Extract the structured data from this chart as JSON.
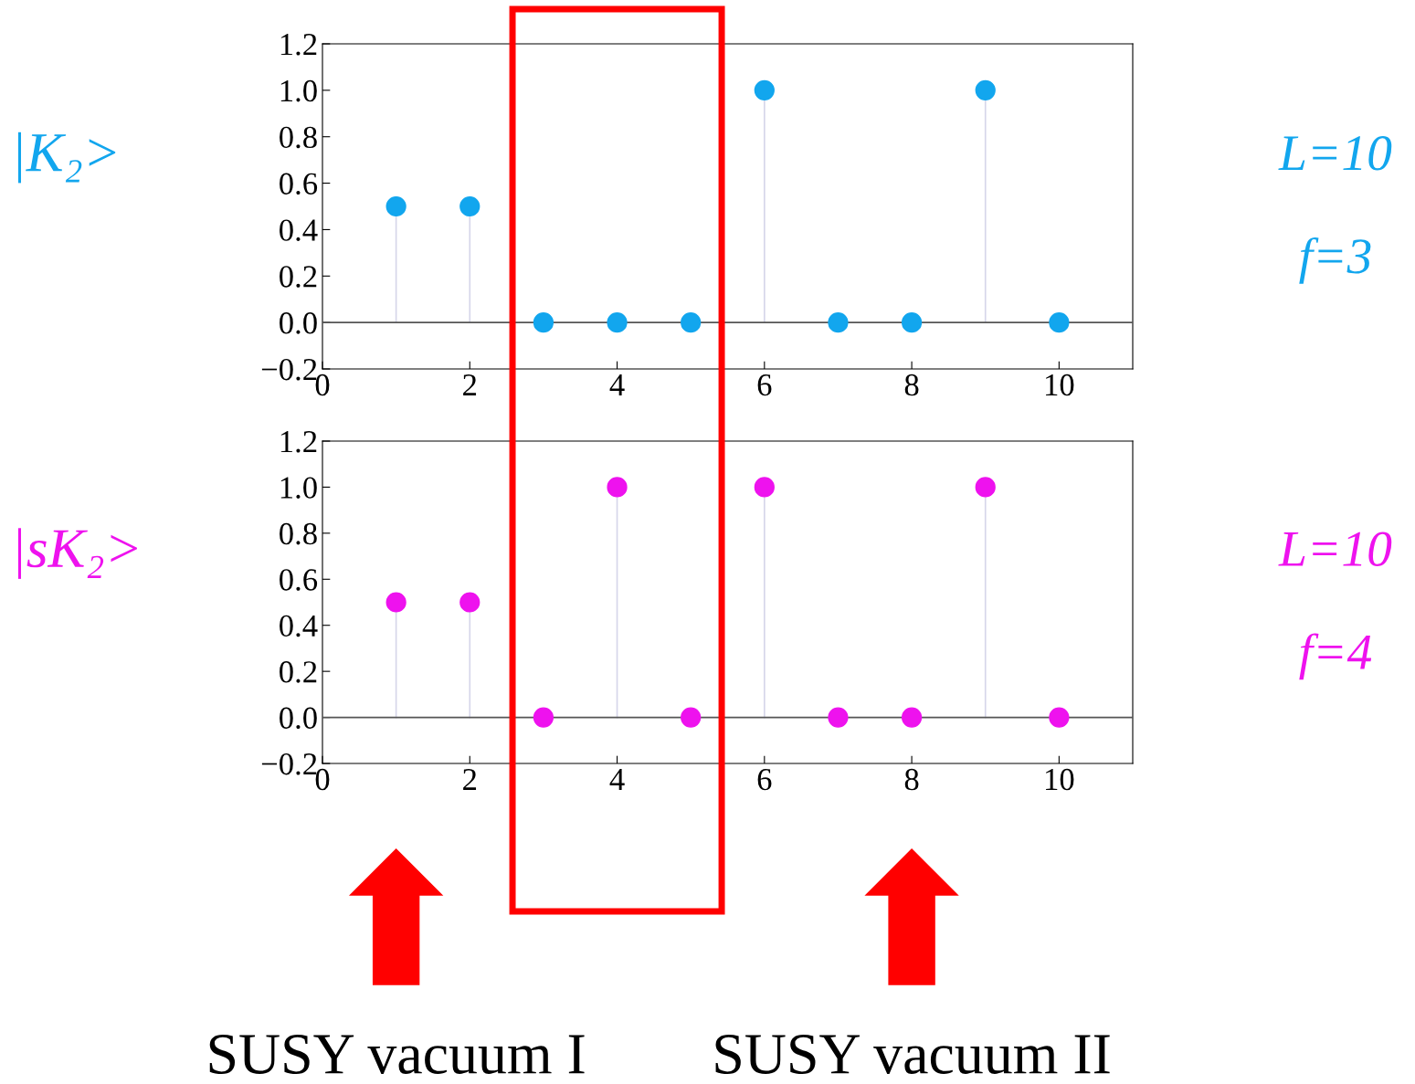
{
  "chart_data": [
    {
      "type": "lollipop",
      "x": [
        1,
        2,
        3,
        4,
        5,
        6,
        7,
        8,
        9,
        10
      ],
      "values": [
        0.5,
        0.5,
        0,
        0,
        0,
        1,
        0,
        0,
        1,
        0
      ],
      "color": "#12a6ee",
      "marker": "circle",
      "xlim": [
        0,
        11
      ],
      "ylim": [
        -0.2,
        1.2
      ],
      "xticks": [
        0,
        2,
        4,
        6,
        8,
        10
      ],
      "yticks": [
        {
          "value": -0.2,
          "label": "−0.2"
        },
        {
          "value": 0,
          "label": "0.0"
        },
        {
          "value": 0.2,
          "label": "0.2"
        },
        {
          "value": 0.4,
          "label": "0.4"
        },
        {
          "value": 0.6,
          "label": "0.6"
        },
        {
          "value": 0.8,
          "label": "0.8"
        },
        {
          "value": 1,
          "label": "1.0"
        },
        {
          "value": 1.2,
          "label": "1.2"
        }
      ],
      "ref_lines": [
        {
          "axis": "y",
          "value": 0,
          "color": "#555555"
        }
      ],
      "annotations": [
        "|K₂>",
        "L=10",
        "f=3"
      ]
    },
    {
      "type": "lollipop",
      "x": [
        1,
        2,
        3,
        4,
        5,
        6,
        7,
        8,
        9,
        10
      ],
      "values": [
        0.5,
        0.5,
        0,
        1,
        0,
        1,
        0,
        0,
        1,
        0
      ],
      "color": "#ee12ee",
      "marker": "circle",
      "xlim": [
        0,
        11
      ],
      "ylim": [
        -0.2,
        1.2
      ],
      "xticks": [
        0,
        2,
        4,
        6,
        8,
        10
      ],
      "yticks": [
        {
          "value": -0.2,
          "label": "−0.2"
        },
        {
          "value": 0,
          "label": "0.0"
        },
        {
          "value": 0.2,
          "label": "0.2"
        },
        {
          "value": 0.4,
          "label": "0.4"
        },
        {
          "value": 0.6,
          "label": "0.6"
        },
        {
          "value": 0.8,
          "label": "0.8"
        },
        {
          "value": 1,
          "label": "1.0"
        },
        {
          "value": 1.2,
          "label": "1.2"
        }
      ],
      "ref_lines": [
        {
          "axis": "y",
          "value": 0,
          "color": "#555555"
        }
      ],
      "annotations": [
        "|sK₂>",
        "L=10",
        "f=4",
        "SUSY vacuum I",
        "SUSY vacuum II"
      ]
    }
  ]
}
